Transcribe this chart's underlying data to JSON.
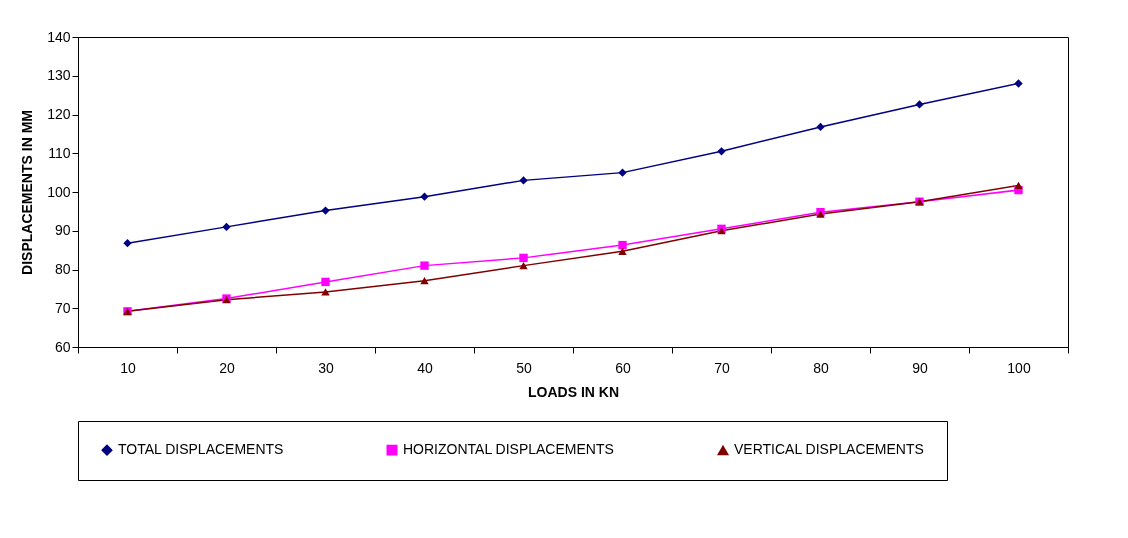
{
  "chart_data": {
    "type": "line",
    "xlabel": "LOADS IN KN",
    "ylabel": "DISPLACEMENTS IN MM",
    "categories": [
      "10",
      "20",
      "30",
      "40",
      "50",
      "60",
      "70",
      "80",
      "90",
      "100"
    ],
    "series": [
      {
        "name": "TOTAL DISPLACEMENTS",
        "color": "#000080",
        "marker": "diamond",
        "values": [
          86.8,
          91,
          95.2,
          98.8,
          103,
          105,
          110.5,
          116.8,
          122.6,
          128
        ]
      },
      {
        "name": "HORIZONTAL DISPLACEMENTS",
        "color": "#ff00ff",
        "marker": "square",
        "values": [
          69.2,
          72.5,
          76.8,
          81,
          83,
          86.3,
          90.5,
          94.8,
          97.5,
          100.5
        ]
      },
      {
        "name": "VERTICAL DISPLACEMENTS",
        "color": "#800000",
        "marker": "triangle",
        "values": [
          69.2,
          72.2,
          74.2,
          77.1,
          81,
          84.7,
          90,
          94.3,
          97.5,
          101.7
        ]
      }
    ],
    "ylim": [
      60,
      140
    ],
    "yticks": [
      60,
      70,
      80,
      90,
      100,
      110,
      120,
      130,
      140
    ],
    "legend": "bottom",
    "line_style": "solid"
  }
}
